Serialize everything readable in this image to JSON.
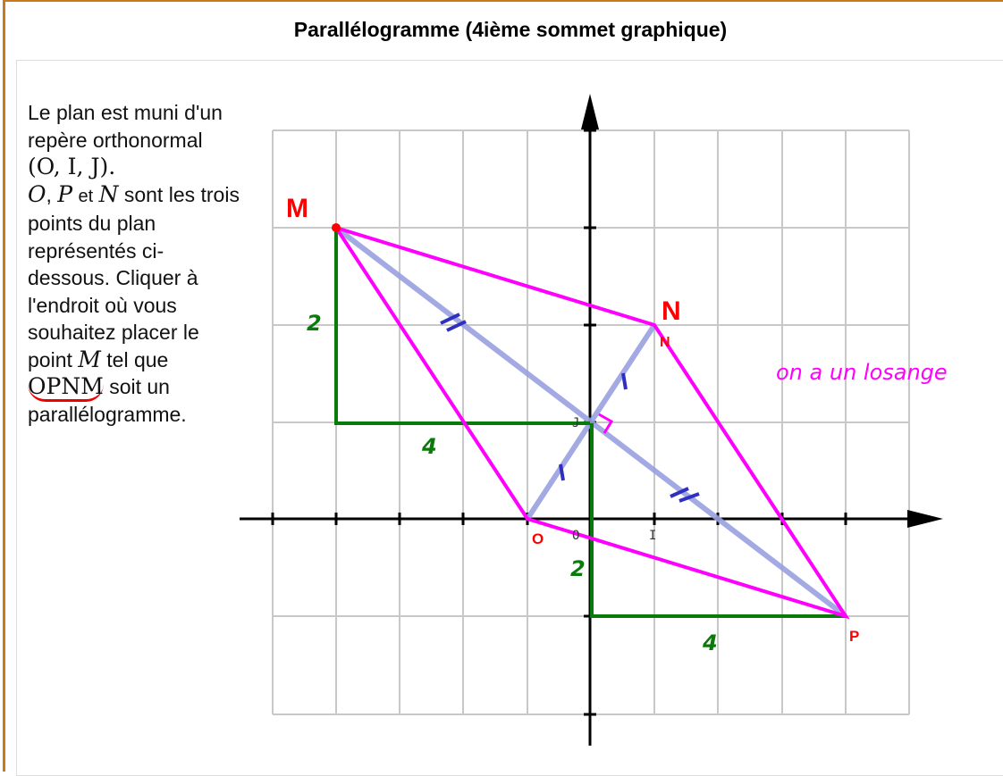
{
  "title": "Parallélogramme (4ième sommet graphique)",
  "instructions": {
    "l1": "Le plan est muni d'un repère orthonormal",
    "repere": "(O, I, J).",
    "o": "O",
    "comma": ",",
    "p": "P",
    "et": "et",
    "n": "N",
    "l2": "sont les trois points du plan représentés ci-dessous. Cliquer à l'endroit où vous souhaitez placer le point",
    "m": "M",
    "tel": "tel que",
    "opnm": "OPNM",
    "l3": "soit un parallélogramme."
  },
  "graph": {
    "labels": {
      "M": "M",
      "N": "N",
      "O": "O",
      "P": "P",
      "axis_O": "O",
      "axis_I": "I",
      "axis_J": "J"
    },
    "annotations": {
      "left_2": "2",
      "left_4": "4",
      "bottom_2": "2",
      "bottom_4": "4",
      "note": "on a un losange"
    },
    "colors": {
      "grid": "#c8c8c8",
      "parallelogram": "#ff00ff",
      "diagonals": "#9aa0e0",
      "green": "#0a7a0a",
      "points": "#ff0000",
      "ticks": "#3030c0"
    }
  }
}
